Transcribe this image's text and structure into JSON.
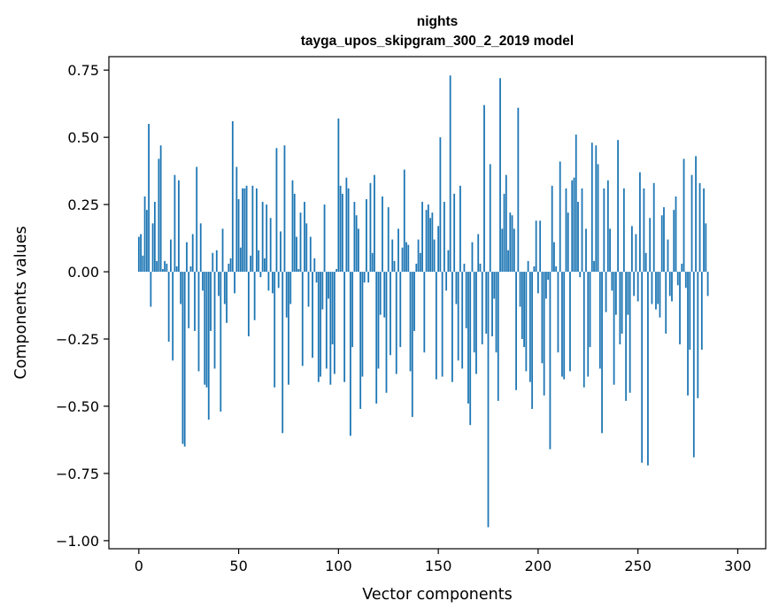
{
  "chart_data": {
    "type": "bar",
    "title": "nights",
    "subtitle": "tayga_upos_skipgram_300_2_2019 model",
    "xlabel": "Vector components",
    "ylabel": "Components values",
    "xlim": [
      -15,
      314
    ],
    "ylim": [
      -1.03,
      0.8
    ],
    "xticks": [
      0,
      50,
      100,
      150,
      200,
      250,
      300
    ],
    "xtick_labels": [
      "0",
      "50",
      "100",
      "150",
      "200",
      "250",
      "300"
    ],
    "yticks": [
      0.75,
      0.5,
      0.25,
      0.0,
      -0.25,
      -0.5,
      -0.75,
      -1.0
    ],
    "ytick_labels": [
      "0.75",
      "0.50",
      "0.25",
      "0.00",
      "−0.25",
      "−0.50",
      "−0.75",
      "−1.00"
    ],
    "grid": false,
    "bar_color": "#1f77b4",
    "values": [
      0.13,
      0.14,
      0.06,
      0.28,
      0.23,
      0.55,
      -0.13,
      0.18,
      0.26,
      0.04,
      0.42,
      0.47,
      0.01,
      0.04,
      0.03,
      -0.26,
      0.12,
      -0.33,
      0.36,
      0.02,
      0.34,
      -0.12,
      -0.64,
      -0.65,
      0.11,
      -0.21,
      0.02,
      0.14,
      -0.22,
      0.39,
      -0.37,
      0.18,
      -0.07,
      -0.42,
      -0.43,
      -0.55,
      -0.22,
      0.07,
      -0.36,
      0.08,
      -0.09,
      -0.52,
      0.16,
      -0.12,
      -0.19,
      0.03,
      0.05,
      0.56,
      -0.08,
      0.39,
      0.27,
      0.09,
      0.31,
      0.31,
      0.32,
      -0.24,
      0.06,
      0.32,
      -0.18,
      0.31,
      0.08,
      -0.02,
      0.26,
      0.05,
      0.25,
      -0.07,
      0.2,
      -0.08,
      -0.43,
      0.46,
      -0.06,
      0.15,
      -0.6,
      0.47,
      -0.17,
      -0.42,
      -0.12,
      0.34,
      0.29,
      0.13,
      0.01,
      0.22,
      -0.35,
      0.26,
      0.18,
      -0.13,
      0.13,
      -0.32,
      0.05,
      -0.04,
      -0.41,
      -0.39,
      -0.14,
      0.25,
      -0.36,
      -0.1,
      -0.42,
      -0.27,
      -0.38,
      0.01,
      0.57,
      0.32,
      0.29,
      -0.41,
      0.35,
      0.31,
      -0.61,
      -0.28,
      0.26,
      0.21,
      0.16,
      -0.51,
      -0.39,
      -0.04,
      0.27,
      -0.04,
      0.33,
      0.07,
      0.36,
      -0.49,
      -0.36,
      -0.16,
      0.28,
      -0.17,
      -0.45,
      0.24,
      -0.31,
      0.12,
      0.04,
      -0.38,
      0.16,
      -0.28,
      0.09,
      0.38,
      0.11,
      0.1,
      -0.37,
      -0.54,
      -0.22,
      0.03,
      0.12,
      0.07,
      0.26,
      -0.3,
      0.23,
      0.25,
      0.2,
      0.22,
      0.12,
      -0.4,
      0.17,
      0.5,
      -0.39,
      0.26,
      -0.07,
      0.08,
      0.73,
      -0.41,
      0.29,
      -0.12,
      -0.33,
      0.32,
      -0.36,
      0.03,
      -0.21,
      -0.49,
      -0.57,
      0.11,
      -0.3,
      -0.38,
      0.14,
      0.03,
      -0.27,
      0.62,
      -0.23,
      -0.95,
      0.4,
      -0.24,
      -0.1,
      -0.3,
      -0.48,
      0.72,
      0.16,
      0.29,
      0.36,
      0.08,
      0.22,
      0.21,
      0.16,
      -0.44,
      0.61,
      -0.13,
      -0.25,
      -0.28,
      -0.37,
      0.04,
      -0.41,
      -0.51,
      0.02,
      0.19,
      -0.08,
      0.19,
      -0.34,
      -0.46,
      -0.1,
      -0.03,
      -0.66,
      0.32,
      0.11,
      0.02,
      -0.3,
      0.41,
      -0.39,
      -0.4,
      0.31,
      0.22,
      -0.37,
      0.34,
      0.35,
      0.51,
      0.26,
      -0.02,
      0.31,
      -0.43,
      0.16,
      -0.39,
      -0.28,
      0.48,
      0.04,
      0.47,
      0.4,
      -0.36,
      -0.6,
      0.31,
      -0.15,
      0.34,
      0.16,
      -0.07,
      -0.42,
      -0.16,
      0.49,
      -0.27,
      -0.23,
      0.31,
      -0.48,
      -0.16,
      -0.45,
      0.17,
      -0.09,
      0.14,
      -0.11,
      0.37,
      -0.71,
      0.31,
      0.07,
      -0.72,
      0.2,
      -0.12,
      0.33,
      -0.14,
      -0.12,
      -0.17,
      0.21,
      0.24,
      -0.23,
      0.12,
      -0.09,
      -0.11,
      0.23,
      0.28,
      -0.05,
      -0.27,
      0.03,
      0.42,
      -0.06,
      -0.46,
      -0.29,
      0.36,
      -0.69,
      0.43,
      -0.47,
      0.33,
      -0.29,
      0.31,
      0.18,
      -0.09
    ]
  }
}
